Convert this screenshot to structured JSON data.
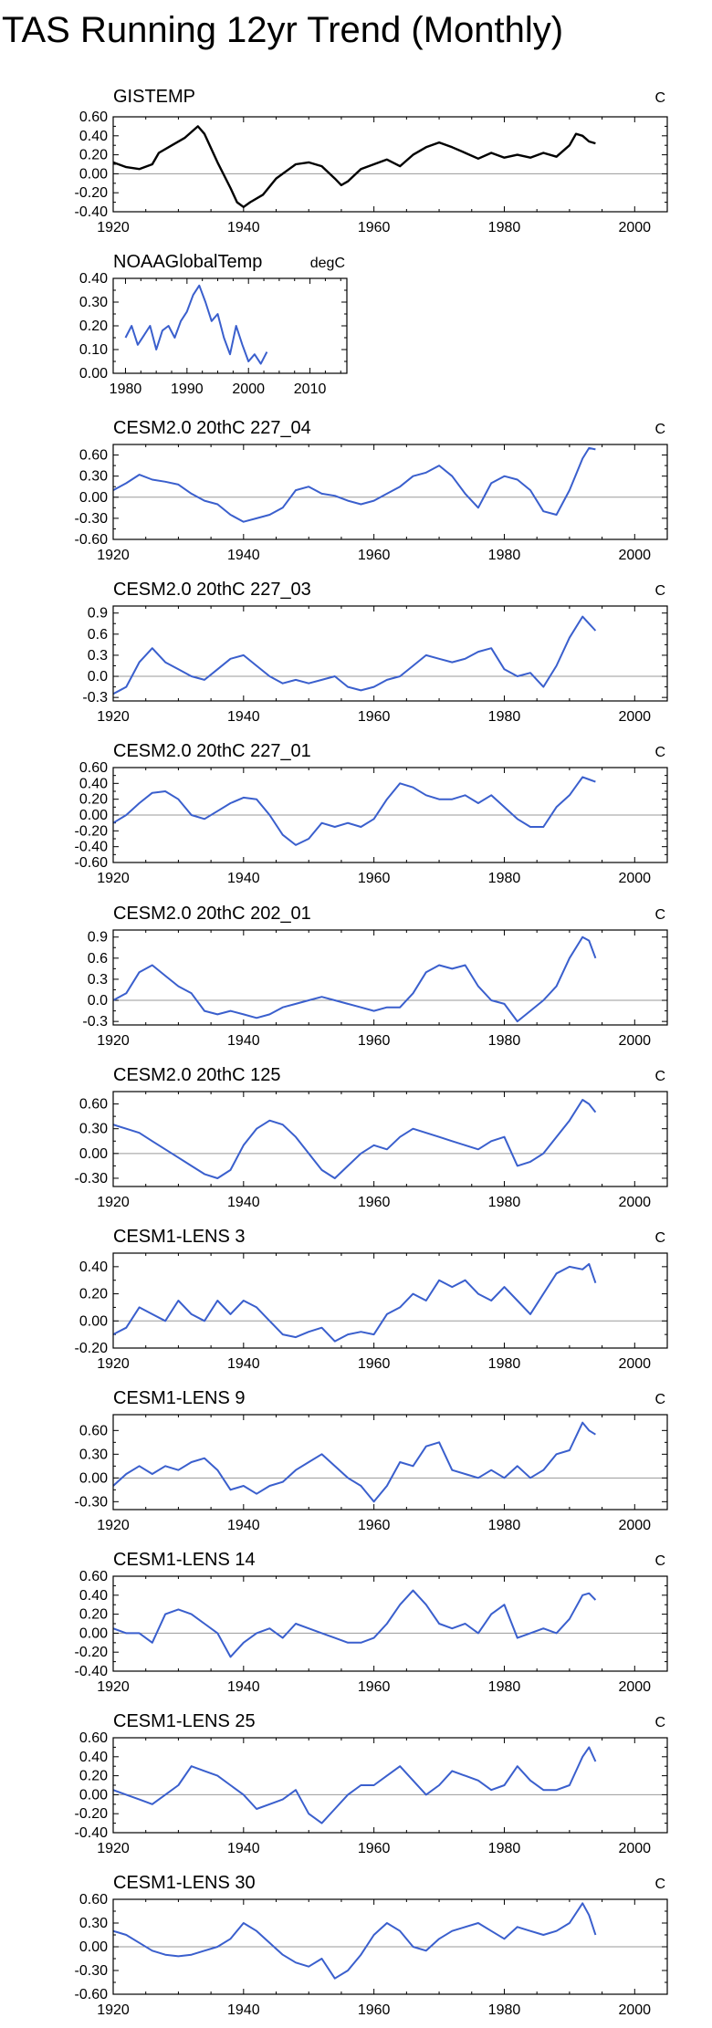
{
  "page": {
    "title": "TAS Running 12yr Trend (Monthly)"
  },
  "colors": {
    "obs_black": "#000000",
    "model_blue": "#3a5fcd",
    "zero_line": "#9a9a9a",
    "axis": "#000000"
  },
  "chart_data": [
    {
      "type": "line",
      "title": "GISTEMP",
      "units": "C",
      "color": "#000000",
      "xlim": [
        1920,
        2005
      ],
      "ylim": [
        -0.4,
        0.6
      ],
      "xticks": [
        1920,
        1940,
        1960,
        1980,
        2000
      ],
      "yticks": [
        -0.4,
        -0.2,
        0.0,
        0.2,
        0.4,
        0.6
      ],
      "ytick_labels": [
        "-0.40",
        "-0.20",
        "0.00",
        "0.20",
        "0.40",
        "0.60"
      ],
      "x": [
        1920,
        1922,
        1924,
        1926,
        1927,
        1929,
        1931,
        1933,
        1934,
        1936,
        1938,
        1939,
        1940,
        1941,
        1943,
        1945,
        1947,
        1948,
        1950,
        1952,
        1954,
        1955,
        1956,
        1958,
        1960,
        1962,
        1964,
        1966,
        1968,
        1970,
        1972,
        1974,
        1976,
        1978,
        1980,
        1982,
        1984,
        1986,
        1988,
        1990,
        1991,
        1992,
        1993,
        1994
      ],
      "y": [
        0.12,
        0.07,
        0.05,
        0.1,
        0.22,
        0.3,
        0.38,
        0.5,
        0.42,
        0.12,
        -0.15,
        -0.3,
        -0.35,
        -0.3,
        -0.22,
        -0.05,
        0.05,
        0.1,
        0.12,
        0.08,
        -0.05,
        -0.12,
        -0.08,
        0.05,
        0.1,
        0.15,
        0.08,
        0.2,
        0.28,
        0.33,
        0.28,
        0.22,
        0.16,
        0.22,
        0.17,
        0.2,
        0.17,
        0.22,
        0.18,
        0.3,
        0.42,
        0.4,
        0.34,
        0.32
      ]
    },
    {
      "type": "line",
      "title": "NOAAGlobalTemp",
      "units": "degC",
      "color": "#3a5fcd",
      "xlim": [
        1978,
        2016
      ],
      "ylim": [
        0.0,
        0.4
      ],
      "xticks": [
        1980,
        1990,
        2000,
        2010
      ],
      "yticks": [
        0.0,
        0.1,
        0.2,
        0.3,
        0.4
      ],
      "ytick_labels": [
        "0.00",
        "0.10",
        "0.20",
        "0.30",
        "0.40"
      ],
      "x": [
        1980,
        1981,
        1982,
        1983,
        1984,
        1985,
        1986,
        1987,
        1988,
        1989,
        1990,
        1991,
        1992,
        1993,
        1994,
        1995,
        1996,
        1997,
        1998,
        1999,
        2000,
        2001,
        2002,
        2003
      ],
      "y": [
        0.15,
        0.2,
        0.12,
        0.16,
        0.2,
        0.1,
        0.18,
        0.2,
        0.15,
        0.22,
        0.26,
        0.33,
        0.37,
        0.3,
        0.22,
        0.25,
        0.15,
        0.08,
        0.2,
        0.12,
        0.05,
        0.08,
        0.04,
        0.09
      ]
    },
    {
      "type": "line",
      "title": "CESM2.0 20thC 227_04",
      "units": "C",
      "color": "#3a5fcd",
      "xlim": [
        1920,
        2005
      ],
      "ylim": [
        -0.6,
        0.75
      ],
      "xticks": [
        1920,
        1940,
        1960,
        1980,
        2000
      ],
      "yticks": [
        -0.6,
        -0.3,
        0.0,
        0.3,
        0.6
      ],
      "ytick_labels": [
        "-0.60",
        "-0.30",
        "0.00",
        "0.30",
        "0.60"
      ],
      "x": [
        1920,
        1922,
        1924,
        1926,
        1928,
        1930,
        1932,
        1934,
        1936,
        1938,
        1940,
        1942,
        1944,
        1946,
        1948,
        1950,
        1952,
        1954,
        1956,
        1958,
        1960,
        1962,
        1964,
        1966,
        1968,
        1970,
        1972,
        1974,
        1976,
        1978,
        1980,
        1982,
        1984,
        1986,
        1988,
        1990,
        1992,
        1993,
        1994
      ],
      "y": [
        0.1,
        0.2,
        0.32,
        0.25,
        0.22,
        0.18,
        0.05,
        -0.05,
        -0.1,
        -0.25,
        -0.35,
        -0.3,
        -0.25,
        -0.15,
        0.1,
        0.15,
        0.05,
        0.02,
        -0.05,
        -0.1,
        -0.05,
        0.05,
        0.15,
        0.3,
        0.35,
        0.45,
        0.3,
        0.05,
        -0.15,
        0.2,
        0.3,
        0.25,
        0.1,
        -0.2,
        -0.25,
        0.1,
        0.55,
        0.7,
        0.68
      ]
    },
    {
      "type": "line",
      "title": "CESM2.0 20thC 227_03",
      "units": "C",
      "color": "#3a5fcd",
      "xlim": [
        1920,
        2005
      ],
      "ylim": [
        -0.35,
        1.0
      ],
      "xticks": [
        1920,
        1940,
        1960,
        1980,
        2000
      ],
      "yticks": [
        -0.3,
        0.0,
        0.3,
        0.6,
        0.9
      ],
      "ytick_labels": [
        "-0.3",
        "0.0",
        "0.3",
        "0.6",
        "0.9"
      ],
      "x": [
        1920,
        1922,
        1924,
        1926,
        1928,
        1930,
        1932,
        1934,
        1936,
        1938,
        1940,
        1942,
        1944,
        1946,
        1948,
        1950,
        1952,
        1954,
        1956,
        1958,
        1960,
        1962,
        1964,
        1966,
        1968,
        1970,
        1972,
        1974,
        1976,
        1978,
        1980,
        1982,
        1984,
        1986,
        1988,
        1990,
        1992,
        1993,
        1994
      ],
      "y": [
        -0.25,
        -0.15,
        0.2,
        0.4,
        0.2,
        0.1,
        0.0,
        -0.05,
        0.1,
        0.25,
        0.3,
        0.15,
        0.0,
        -0.1,
        -0.05,
        -0.1,
        -0.05,
        0.0,
        -0.15,
        -0.2,
        -0.15,
        -0.05,
        0.0,
        0.15,
        0.3,
        0.25,
        0.2,
        0.25,
        0.35,
        0.4,
        0.1,
        0.0,
        0.05,
        -0.15,
        0.15,
        0.55,
        0.85,
        0.75,
        0.65
      ]
    },
    {
      "type": "line",
      "title": "CESM2.0 20thC 227_01",
      "units": "C",
      "color": "#3a5fcd",
      "xlim": [
        1920,
        2005
      ],
      "ylim": [
        -0.6,
        0.6
      ],
      "xticks": [
        1920,
        1940,
        1960,
        1980,
        2000
      ],
      "yticks": [
        -0.6,
        -0.4,
        -0.2,
        0.0,
        0.2,
        0.4,
        0.6
      ],
      "ytick_labels": [
        "-0.60",
        "-0.40",
        "-0.20",
        "0.00",
        "0.20",
        "0.40",
        "0.60"
      ],
      "x": [
        1920,
        1922,
        1924,
        1926,
        1928,
        1930,
        1932,
        1934,
        1936,
        1938,
        1940,
        1942,
        1944,
        1946,
        1948,
        1950,
        1952,
        1954,
        1956,
        1958,
        1960,
        1962,
        1964,
        1966,
        1968,
        1970,
        1972,
        1974,
        1976,
        1978,
        1980,
        1982,
        1984,
        1986,
        1988,
        1990,
        1992,
        1993,
        1994
      ],
      "y": [
        -0.1,
        0.0,
        0.15,
        0.28,
        0.3,
        0.2,
        0.0,
        -0.05,
        0.05,
        0.15,
        0.22,
        0.2,
        0.0,
        -0.25,
        -0.38,
        -0.3,
        -0.1,
        -0.15,
        -0.1,
        -0.15,
        -0.05,
        0.2,
        0.4,
        0.35,
        0.25,
        0.2,
        0.2,
        0.25,
        0.15,
        0.25,
        0.1,
        -0.05,
        -0.15,
        -0.15,
        0.1,
        0.25,
        0.48,
        0.45,
        0.42
      ]
    },
    {
      "type": "line",
      "title": "CESM2.0 20thC 202_01",
      "units": "C",
      "color": "#3a5fcd",
      "xlim": [
        1920,
        2005
      ],
      "ylim": [
        -0.35,
        1.0
      ],
      "xticks": [
        1920,
        1940,
        1960,
        1980,
        2000
      ],
      "yticks": [
        -0.3,
        0.0,
        0.3,
        0.6,
        0.9
      ],
      "ytick_labels": [
        "-0.3",
        "0.0",
        "0.3",
        "0.6",
        "0.9"
      ],
      "x": [
        1920,
        1922,
        1924,
        1926,
        1928,
        1930,
        1932,
        1934,
        1936,
        1938,
        1940,
        1942,
        1944,
        1946,
        1948,
        1950,
        1952,
        1954,
        1956,
        1958,
        1960,
        1962,
        1964,
        1966,
        1968,
        1970,
        1972,
        1974,
        1976,
        1978,
        1980,
        1982,
        1984,
        1986,
        1988,
        1990,
        1992,
        1993,
        1994
      ],
      "y": [
        0.0,
        0.1,
        0.4,
        0.5,
        0.35,
        0.2,
        0.1,
        -0.15,
        -0.2,
        -0.15,
        -0.2,
        -0.25,
        -0.2,
        -0.1,
        -0.05,
        0.0,
        0.05,
        0.0,
        -0.05,
        -0.1,
        -0.15,
        -0.1,
        -0.1,
        0.1,
        0.4,
        0.5,
        0.45,
        0.5,
        0.2,
        0.0,
        -0.05,
        -0.3,
        -0.15,
        0.0,
        0.2,
        0.6,
        0.9,
        0.85,
        0.6
      ]
    },
    {
      "type": "line",
      "title": "CESM2.0 20thC 125",
      "units": "C",
      "color": "#3a5fcd",
      "xlim": [
        1920,
        2005
      ],
      "ylim": [
        -0.4,
        0.75
      ],
      "xticks": [
        1920,
        1940,
        1960,
        1980,
        2000
      ],
      "yticks": [
        -0.3,
        0.0,
        0.3,
        0.6
      ],
      "ytick_labels": [
        "-0.30",
        "0.00",
        "0.30",
        "0.60"
      ],
      "x": [
        1920,
        1922,
        1924,
        1926,
        1928,
        1930,
        1932,
        1934,
        1936,
        1938,
        1940,
        1942,
        1944,
        1946,
        1948,
        1950,
        1952,
        1954,
        1956,
        1958,
        1960,
        1962,
        1964,
        1966,
        1968,
        1970,
        1972,
        1974,
        1976,
        1978,
        1980,
        1982,
        1984,
        1986,
        1988,
        1990,
        1992,
        1993,
        1994
      ],
      "y": [
        0.35,
        0.3,
        0.25,
        0.15,
        0.05,
        -0.05,
        -0.15,
        -0.25,
        -0.3,
        -0.2,
        0.1,
        0.3,
        0.4,
        0.35,
        0.2,
        0.0,
        -0.2,
        -0.3,
        -0.15,
        0.0,
        0.1,
        0.05,
        0.2,
        0.3,
        0.25,
        0.2,
        0.15,
        0.1,
        0.05,
        0.15,
        0.2,
        -0.15,
        -0.1,
        0.0,
        0.2,
        0.4,
        0.65,
        0.6,
        0.5
      ]
    },
    {
      "type": "line",
      "title": "CESM1-LENS 3",
      "units": "C",
      "color": "#3a5fcd",
      "xlim": [
        1920,
        2005
      ],
      "ylim": [
        -0.2,
        0.5
      ],
      "xticks": [
        1920,
        1940,
        1960,
        1980,
        2000
      ],
      "yticks": [
        -0.2,
        0.0,
        0.2,
        0.4
      ],
      "ytick_labels": [
        "-0.20",
        "0.00",
        "0.20",
        "0.40"
      ],
      "x": [
        1920,
        1922,
        1924,
        1926,
        1928,
        1930,
        1932,
        1934,
        1936,
        1938,
        1940,
        1942,
        1944,
        1946,
        1948,
        1950,
        1952,
        1954,
        1956,
        1958,
        1960,
        1962,
        1964,
        1966,
        1968,
        1970,
        1972,
        1974,
        1976,
        1978,
        1980,
        1982,
        1984,
        1986,
        1988,
        1990,
        1992,
        1993,
        1994
      ],
      "y": [
        -0.1,
        -0.05,
        0.1,
        0.05,
        0.0,
        0.15,
        0.05,
        0.0,
        0.15,
        0.05,
        0.15,
        0.1,
        0.0,
        -0.1,
        -0.12,
        -0.08,
        -0.05,
        -0.15,
        -0.1,
        -0.08,
        -0.1,
        0.05,
        0.1,
        0.2,
        0.15,
        0.3,
        0.25,
        0.3,
        0.2,
        0.15,
        0.25,
        0.15,
        0.05,
        0.2,
        0.35,
        0.4,
        0.38,
        0.42,
        0.28
      ]
    },
    {
      "type": "line",
      "title": "CESM1-LENS 9",
      "units": "C",
      "color": "#3a5fcd",
      "xlim": [
        1920,
        2005
      ],
      "ylim": [
        -0.4,
        0.8
      ],
      "xticks": [
        1920,
        1940,
        1960,
        1980,
        2000
      ],
      "yticks": [
        -0.3,
        0.0,
        0.3,
        0.6
      ],
      "ytick_labels": [
        "-0.30",
        "0.00",
        "0.30",
        "0.60"
      ],
      "x": [
        1920,
        1922,
        1924,
        1926,
        1928,
        1930,
        1932,
        1934,
        1936,
        1938,
        1940,
        1942,
        1944,
        1946,
        1948,
        1950,
        1952,
        1954,
        1956,
        1958,
        1960,
        1962,
        1964,
        1966,
        1968,
        1970,
        1972,
        1974,
        1976,
        1978,
        1980,
        1982,
        1984,
        1986,
        1988,
        1990,
        1992,
        1993,
        1994
      ],
      "y": [
        -0.1,
        0.05,
        0.15,
        0.05,
        0.15,
        0.1,
        0.2,
        0.25,
        0.1,
        -0.15,
        -0.1,
        -0.2,
        -0.1,
        -0.05,
        0.1,
        0.2,
        0.3,
        0.15,
        0.0,
        -0.1,
        -0.3,
        -0.1,
        0.2,
        0.15,
        0.4,
        0.45,
        0.1,
        0.05,
        0.0,
        0.1,
        0.0,
        0.15,
        0.0,
        0.1,
        0.3,
        0.35,
        0.7,
        0.6,
        0.55
      ]
    },
    {
      "type": "line",
      "title": "CESM1-LENS 14",
      "units": "C",
      "color": "#3a5fcd",
      "xlim": [
        1920,
        2005
      ],
      "ylim": [
        -0.4,
        0.6
      ],
      "xticks": [
        1920,
        1940,
        1960,
        1980,
        2000
      ],
      "yticks": [
        -0.4,
        -0.2,
        0.0,
        0.2,
        0.4,
        0.6
      ],
      "ytick_labels": [
        "-0.40",
        "-0.20",
        "0.00",
        "0.20",
        "0.40",
        "0.60"
      ],
      "x": [
        1920,
        1922,
        1924,
        1926,
        1928,
        1930,
        1932,
        1934,
        1936,
        1938,
        1940,
        1942,
        1944,
        1946,
        1948,
        1950,
        1952,
        1954,
        1956,
        1958,
        1960,
        1962,
        1964,
        1966,
        1968,
        1970,
        1972,
        1974,
        1976,
        1978,
        1980,
        1982,
        1984,
        1986,
        1988,
        1990,
        1992,
        1993,
        1994
      ],
      "y": [
        0.05,
        0.0,
        0.0,
        -0.1,
        0.2,
        0.25,
        0.2,
        0.1,
        0.0,
        -0.25,
        -0.1,
        0.0,
        0.05,
        -0.05,
        0.1,
        0.05,
        0.0,
        -0.05,
        -0.1,
        -0.1,
        -0.05,
        0.1,
        0.3,
        0.45,
        0.3,
        0.1,
        0.05,
        0.1,
        0.0,
        0.2,
        0.3,
        -0.05,
        0.0,
        0.05,
        0.0,
        0.15,
        0.4,
        0.42,
        0.35
      ]
    },
    {
      "type": "line",
      "title": "CESM1-LENS 25",
      "units": "C",
      "color": "#3a5fcd",
      "xlim": [
        1920,
        2005
      ],
      "ylim": [
        -0.4,
        0.6
      ],
      "xticks": [
        1920,
        1940,
        1960,
        1980,
        2000
      ],
      "yticks": [
        -0.4,
        -0.2,
        0.0,
        0.2,
        0.4,
        0.6
      ],
      "ytick_labels": [
        "-0.40",
        "-0.20",
        "0.00",
        "0.20",
        "0.40",
        "0.60"
      ],
      "x": [
        1920,
        1922,
        1924,
        1926,
        1928,
        1930,
        1932,
        1934,
        1936,
        1938,
        1940,
        1942,
        1944,
        1946,
        1948,
        1950,
        1952,
        1954,
        1956,
        1958,
        1960,
        1962,
        1964,
        1966,
        1968,
        1970,
        1972,
        1974,
        1976,
        1978,
        1980,
        1982,
        1984,
        1986,
        1988,
        1990,
        1992,
        1993,
        1994
      ],
      "y": [
        0.05,
        0.0,
        -0.05,
        -0.1,
        0.0,
        0.1,
        0.3,
        0.25,
        0.2,
        0.1,
        0.0,
        -0.15,
        -0.1,
        -0.05,
        0.05,
        -0.2,
        -0.3,
        -0.15,
        0.0,
        0.1,
        0.1,
        0.2,
        0.3,
        0.15,
        0.0,
        0.1,
        0.25,
        0.2,
        0.15,
        0.05,
        0.1,
        0.3,
        0.15,
        0.05,
        0.05,
        0.1,
        0.4,
        0.5,
        0.35
      ]
    },
    {
      "type": "line",
      "title": "CESM1-LENS 30",
      "units": "C",
      "color": "#3a5fcd",
      "xlim": [
        1920,
        2005
      ],
      "ylim": [
        -0.6,
        0.6
      ],
      "xticks": [
        1920,
        1940,
        1960,
        1980,
        2000
      ],
      "yticks": [
        -0.6,
        -0.3,
        0.0,
        0.3,
        0.6
      ],
      "ytick_labels": [
        "-0.60",
        "-0.30",
        "0.00",
        "0.30",
        "0.60"
      ],
      "x": [
        1920,
        1922,
        1924,
        1926,
        1928,
        1930,
        1932,
        1934,
        1936,
        1938,
        1940,
        1942,
        1944,
        1946,
        1948,
        1950,
        1952,
        1954,
        1956,
        1958,
        1960,
        1962,
        1964,
        1966,
        1968,
        1970,
        1972,
        1974,
        1976,
        1978,
        1980,
        1982,
        1984,
        1986,
        1988,
        1990,
        1992,
        1993,
        1994
      ],
      "y": [
        0.2,
        0.15,
        0.05,
        -0.05,
        -0.1,
        -0.12,
        -0.1,
        -0.05,
        0.0,
        0.1,
        0.3,
        0.2,
        0.05,
        -0.1,
        -0.2,
        -0.25,
        -0.15,
        -0.4,
        -0.3,
        -0.1,
        0.15,
        0.3,
        0.2,
        0.0,
        -0.05,
        0.1,
        0.2,
        0.25,
        0.3,
        0.2,
        0.1,
        0.25,
        0.2,
        0.15,
        0.2,
        0.3,
        0.55,
        0.4,
        0.15
      ]
    }
  ]
}
